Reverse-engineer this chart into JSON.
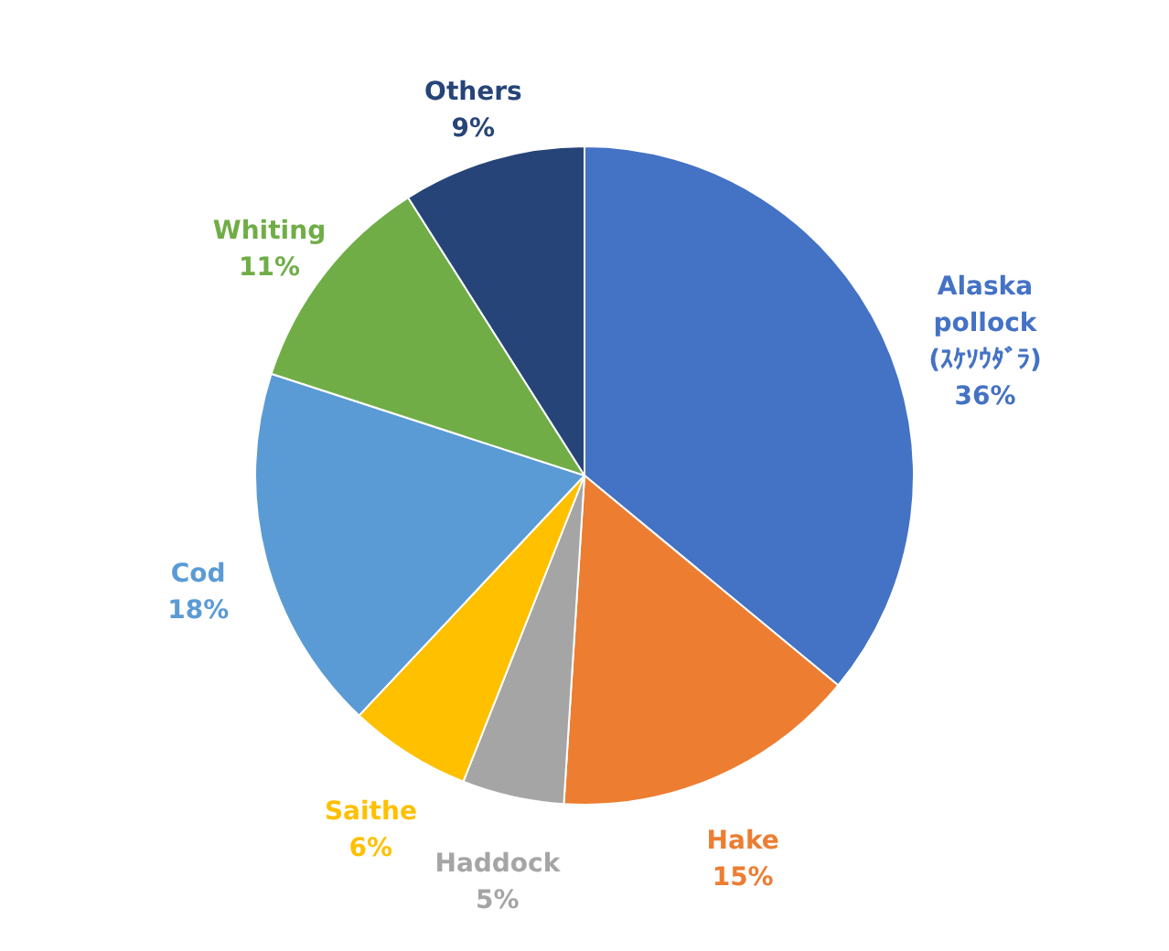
{
  "chart_data": {
    "type": "pie",
    "categories": [
      "Alaska pollock (ｽｹｿｳﾀﾞﾗ)",
      "Hake",
      "Haddock",
      "Saithe",
      "Cod",
      "Whiting",
      "Others"
    ],
    "values": [
      36,
      15,
      5,
      6,
      18,
      11,
      9
    ],
    "value_labels": [
      "36%",
      "15%",
      "5%",
      "6%",
      "18%",
      "11%",
      "9%"
    ],
    "colors": [
      "#4472c4",
      "#ed7d31",
      "#a5a5a5",
      "#ffc000",
      "#5b9bd5",
      "#70ad47",
      "#264478"
    ],
    "legend": false
  }
}
